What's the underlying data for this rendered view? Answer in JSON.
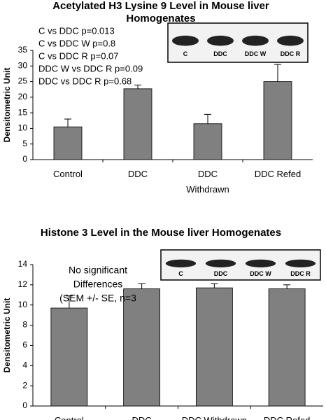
{
  "chart_data": [
    {
      "type": "bar",
      "title": "Acetylated H3 Lysine 9 Level in Mouse liver Homogenates",
      "ylabel": "Densitometric Unit",
      "categories": [
        "Control",
        "DDC",
        "DDC Withdrawn",
        "DDC Refed"
      ],
      "values": [
        10.5,
        22.7,
        11.5,
        25
      ],
      "errors": [
        2.5,
        1.2,
        3,
        5.5
      ],
      "color": "#808080",
      "ylim": [
        0,
        35
      ],
      "yticks": [
        0,
        5,
        10,
        15,
        20,
        25,
        30,
        35
      ],
      "annotations": [
        "C vs DDC p=0.013",
        "C vs DDC W p=0.8",
        "C vs DDC R p=0.07",
        "DDC W vs DDC R p=0.09",
        "DDC vs DDC R p=0.68"
      ],
      "blot_labels": [
        "C",
        "DDC",
        "DDC W",
        "DDC R"
      ]
    },
    {
      "type": "bar",
      "title": "Histone 3 Level in the Mouse liver Homogenates",
      "ylabel": "Densitometric Unit",
      "categories": [
        "Control",
        "DDC",
        "DDC Withdrawn",
        "DDC Refed"
      ],
      "values": [
        9.7,
        11.6,
        11.7,
        11.6
      ],
      "errors": [
        1.2,
        0.5,
        0.4,
        0.4
      ],
      "color": "#808080",
      "ylim": [
        0,
        14
      ],
      "yticks": [
        0,
        2,
        4,
        6,
        8,
        10,
        12,
        14
      ],
      "annotations": [
        "No significant",
        "Differences",
        "(SEM +/- SE, n=3"
      ],
      "blot_labels": [
        "C",
        "DDC",
        "DDC W",
        "DDC R"
      ]
    }
  ]
}
